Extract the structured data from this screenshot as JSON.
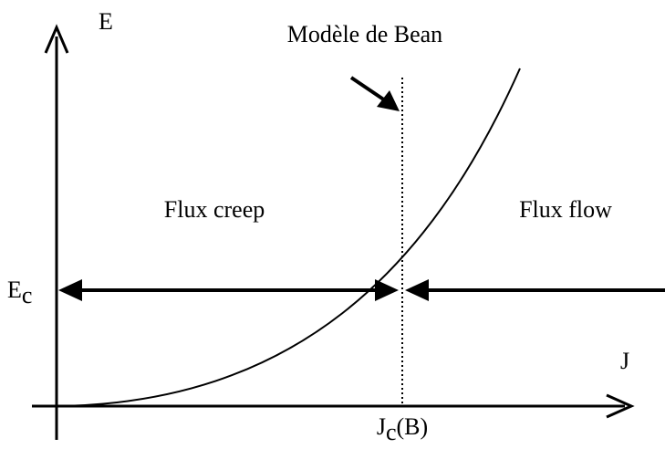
{
  "axes": {
    "y_label": "E",
    "x_label": "J"
  },
  "annotation": "Modèle de Bean",
  "regions": {
    "left": "Flux creep",
    "right": "Flux flow"
  },
  "ec": {
    "base": "E",
    "sub": "c"
  },
  "jc": {
    "base": "J",
    "sub": "c",
    "suffix": "(B)"
  }
}
